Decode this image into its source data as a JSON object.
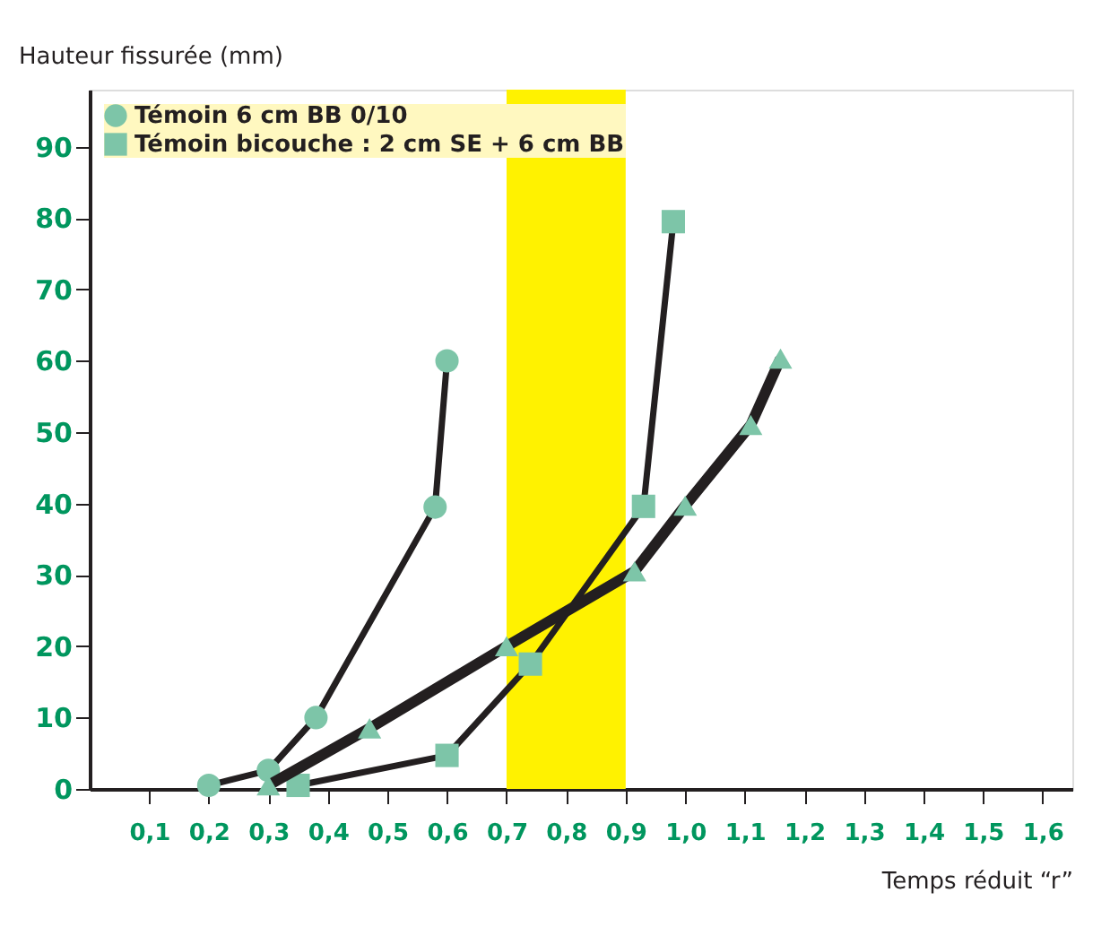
{
  "chart_data": {
    "type": "line",
    "xlabel": "Temps réduit “r”",
    "ylabel": "Hauteur fissurée (mm)",
    "xlim": [
      0,
      1.65
    ],
    "ylim": [
      0,
      98
    ],
    "xticks": [
      {
        "value": 0.1,
        "label": "0,1"
      },
      {
        "value": 0.2,
        "label": "0,2"
      },
      {
        "value": 0.3,
        "label": "0,3"
      },
      {
        "value": 0.4,
        "label": "0,4"
      },
      {
        "value": 0.5,
        "label": "0,5"
      },
      {
        "value": 0.6,
        "label": "0,6"
      },
      {
        "value": 0.7,
        "label": "0,7"
      },
      {
        "value": 0.8,
        "label": "0,8"
      },
      {
        "value": 0.9,
        "label": "0,9"
      },
      {
        "value": 1.0,
        "label": "1,0"
      },
      {
        "value": 1.1,
        "label": "1,1"
      },
      {
        "value": 1.2,
        "label": "1,2"
      },
      {
        "value": 1.3,
        "label": "1,3"
      },
      {
        "value": 1.4,
        "label": "1,4"
      },
      {
        "value": 1.5,
        "label": "1,5"
      },
      {
        "value": 1.6,
        "label": "1,6"
      }
    ],
    "yticks": [
      0,
      10,
      20,
      30,
      40,
      50,
      60,
      70,
      80,
      90
    ],
    "series": [
      {
        "name": "Témoin 6 cm BB 0/10",
        "color": "#7dc5a8",
        "marker": "circle",
        "x": [
          0.2,
          0.3,
          0.38,
          0.58,
          0.6
        ],
        "values": [
          0.5,
          2.6,
          10,
          39.5,
          60
        ]
      },
      {
        "name": "Témoin bicouche : 2 cm SE + 6 cm BB",
        "color": "#7dc5a8",
        "marker": "square",
        "x": [
          0.35,
          0.6,
          0.74,
          0.93,
          0.98
        ],
        "values": [
          0.5,
          4.7,
          17.5,
          39.6,
          79.5
        ]
      },
      {
        "color": "#7dc5a8",
        "marker": "triangle",
        "x": [
          0.3,
          0.47,
          0.7,
          0.915,
          1.0,
          1.11,
          1.16
        ],
        "values": [
          0.5,
          8.5,
          20,
          30.5,
          39.7,
          51,
          60.3
        ]
      }
    ],
    "bands": [
      {
        "axis": "x",
        "from": 0.7,
        "to": 0.9,
        "color": "#fff200"
      }
    ],
    "legend": "top left",
    "grid": false,
    "line_style": "solid"
  }
}
